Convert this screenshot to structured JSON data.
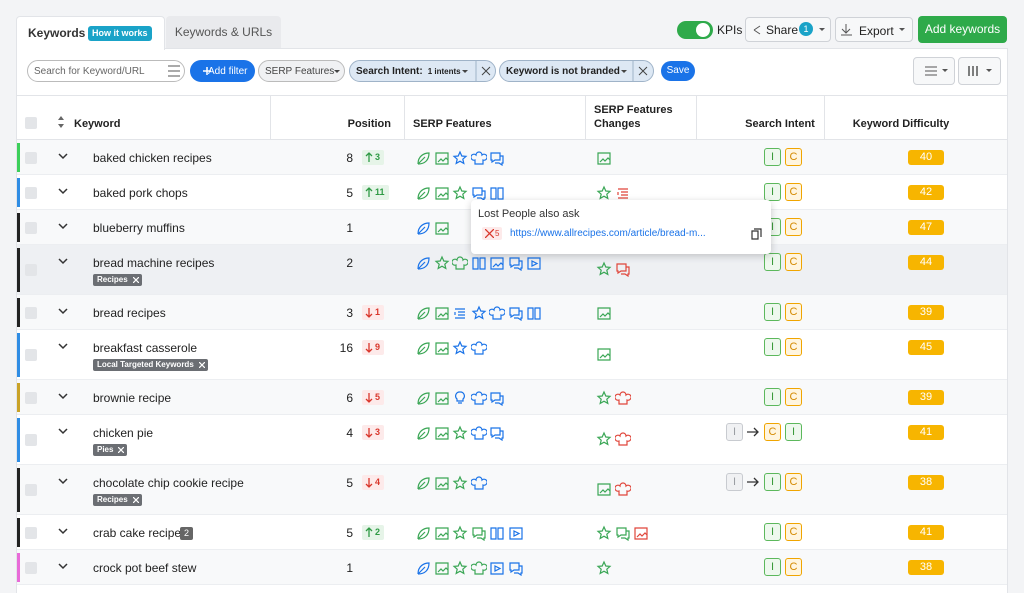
{
  "tabs": {
    "active": "Keywords",
    "badge": "How it works",
    "other": "Keywords & URLs"
  },
  "toolbar": {
    "kpis": "KPIs",
    "share": "Share",
    "share_count": 1,
    "export": "Export",
    "add": "Add keywords"
  },
  "filters": {
    "search": "Search for Keyword/URL",
    "add_filter": "Add filter",
    "serp": "SERP Features",
    "intent_label": "Search Intent:",
    "intent_value": "1 intents",
    "branded": "Keyword is not branded",
    "save": "Save"
  },
  "columns": [
    "Keyword",
    "Position",
    "SERP Features",
    "SERP Features Changes",
    "Search Intent",
    "Keyword Difficulty"
  ],
  "rows": [
    {
      "keyword": "baked chicken recipes",
      "position": 8,
      "change": {
        "dir": "up",
        "value": 3
      },
      "intents": [
        "I",
        "C"
      ],
      "difficulty": 40,
      "color": "#3ccf5a"
    },
    {
      "keyword": "baked pork chops",
      "position": 5,
      "change": {
        "dir": "up",
        "value": 11
      },
      "intents": [
        "I",
        "C"
      ],
      "difficulty": 42,
      "color": "#2f8de4"
    },
    {
      "keyword": "blueberry muffins",
      "position": 1,
      "intents": [
        "I",
        "C"
      ],
      "difficulty": 47,
      "color": "#222222"
    },
    {
      "keyword": "bread machine recipes",
      "position": 2,
      "tag": "Recipes",
      "intents": [
        "I",
        "C"
      ],
      "difficulty": 44,
      "color": "#222222"
    },
    {
      "keyword": "bread recipes",
      "position": 3,
      "change": {
        "dir": "down",
        "value": 1
      },
      "intents": [
        "I",
        "C"
      ],
      "difficulty": 39,
      "color": "#222222"
    },
    {
      "keyword": "breakfast casserole",
      "position": 16,
      "change": {
        "dir": "down",
        "value": 9
      },
      "tag": "Local Targeted Keywords",
      "intents": [
        "I",
        "C"
      ],
      "difficulty": 45,
      "color": "#2f8de4"
    },
    {
      "keyword": "brownie recipe",
      "position": 6,
      "change": {
        "dir": "down",
        "value": 5
      },
      "intents": [
        "I",
        "C"
      ],
      "difficulty": 39,
      "color": "#c9a227"
    },
    {
      "keyword": "chicken pie",
      "position": 4,
      "change": {
        "dir": "down",
        "value": 3
      },
      "tag": "Pies",
      "intent_from": "I",
      "intents": [
        "C",
        "I"
      ],
      "difficulty": 41,
      "color": "#2f8de4"
    },
    {
      "keyword": "chocolate chip cookie recipe",
      "position": 5,
      "change": {
        "dir": "down",
        "value": 4
      },
      "tag": "Recipes",
      "intent_from": "I",
      "intents": [
        "I",
        "C"
      ],
      "difficulty": 38,
      "color": "#222222"
    },
    {
      "keyword": "crab cake recipe",
      "badge": 2,
      "position": 5,
      "change": {
        "dir": "up",
        "value": 2
      },
      "intents": [
        "I",
        "C"
      ],
      "difficulty": 41,
      "color": "#222222"
    },
    {
      "keyword": "crock pot beef stew",
      "position": 1,
      "intents": [
        "I",
        "C"
      ],
      "difficulty": 38,
      "color": "#e86ad8"
    }
  ],
  "tooltip": {
    "title": "Lost People also ask",
    "count": 5,
    "url": "https://www.allrecipes.com/article/bread-m..."
  }
}
